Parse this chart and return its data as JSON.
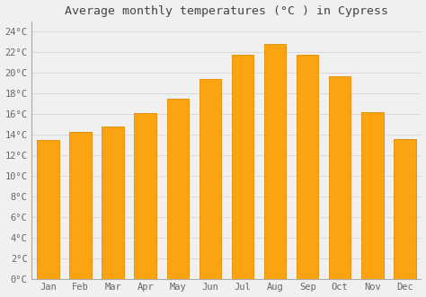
{
  "title": "Average monthly temperatures (°C ) in Cypress",
  "months": [
    "Jan",
    "Feb",
    "Mar",
    "Apr",
    "May",
    "Jun",
    "Jul",
    "Aug",
    "Sep",
    "Oct",
    "Nov",
    "Dec"
  ],
  "values": [
    13.5,
    14.3,
    14.8,
    16.1,
    17.5,
    19.4,
    21.8,
    22.8,
    21.8,
    19.7,
    16.2,
    13.6
  ],
  "bar_color": "#FCA311",
  "bar_edge_color": "#E08A00",
  "background_color": "#f0f0f0",
  "plot_bg_color": "#f0f0f0",
  "grid_color": "#d0d0d0",
  "yticks": [
    0,
    2,
    4,
    6,
    8,
    10,
    12,
    14,
    16,
    18,
    20,
    22,
    24
  ],
  "ylim": [
    0,
    25
  ],
  "title_fontsize": 9.5,
  "tick_fontsize": 7.5,
  "title_color": "#444444",
  "tick_color": "#666666"
}
